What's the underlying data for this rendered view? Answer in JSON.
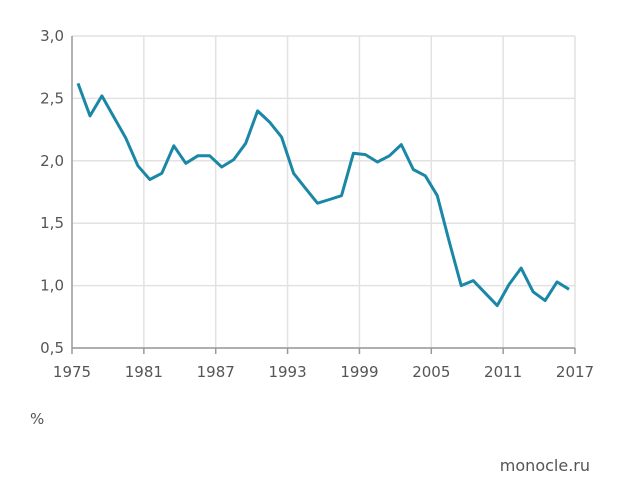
{
  "chart_data": {
    "type": "line",
    "title": "",
    "xlabel": "",
    "ylabel": "%",
    "xlim": [
      1975,
      2017
    ],
    "ylim": [
      0.5,
      3.0
    ],
    "grid": true,
    "x_ticks": [
      "1975",
      "1981",
      "1987",
      "1993",
      "1999",
      "2005",
      "2011",
      "2017"
    ],
    "x_tick_values": [
      1975,
      1981,
      1987,
      1993,
      1999,
      2005,
      2011,
      2017
    ],
    "y_ticks": [
      "0,5",
      "1,0",
      "1,5",
      "2,0",
      "2,5",
      "3,0"
    ],
    "y_tick_values": [
      0.5,
      1.0,
      1.5,
      2.0,
      2.5,
      3.0
    ],
    "series": [
      {
        "name": "value",
        "color": "#1b87a6",
        "x": [
          1975,
          1976,
          1977,
          1978,
          1979,
          1980,
          1981,
          1982,
          1983,
          1984,
          1985,
          1986,
          1987,
          1988,
          1989,
          1990,
          1991,
          1992,
          1993,
          1994,
          1995,
          1996,
          1997,
          1998,
          1999,
          2000,
          2001,
          2002,
          2003,
          2004,
          2005,
          2006,
          2007,
          2008,
          2009,
          2010,
          2011,
          2012,
          2013,
          2014,
          2015,
          2016
        ],
        "values": [
          2.62,
          2.36,
          2.52,
          2.35,
          2.18,
          1.96,
          1.85,
          1.9,
          2.12,
          1.98,
          2.04,
          2.04,
          1.95,
          2.01,
          2.14,
          2.4,
          2.31,
          2.19,
          1.9,
          1.78,
          1.66,
          1.69,
          1.72,
          2.06,
          2.05,
          1.99,
          2.04,
          2.13,
          1.93,
          1.88,
          1.72,
          1.35,
          1.0,
          1.04,
          0.94,
          0.84,
          1.01,
          1.14,
          0.95,
          0.88,
          1.03,
          0.97
        ]
      }
    ]
  },
  "unit_label": "%",
  "source": "monocle.ru"
}
